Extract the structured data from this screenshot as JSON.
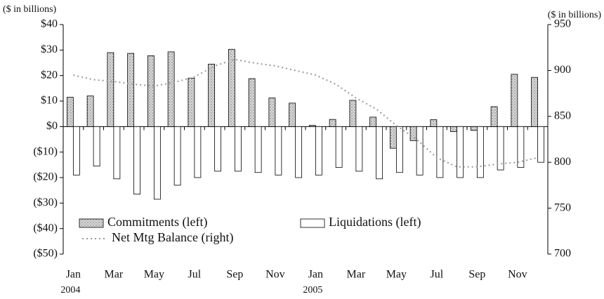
{
  "chart_data": {
    "type": "bar",
    "y_label": "($ in billions)",
    "y2_label": "($ in billions)",
    "categories": [
      "Jan",
      null,
      "Mar",
      null,
      "May",
      null,
      "Jul",
      null,
      "Sep",
      null,
      "Nov",
      null,
      "Jan",
      null,
      "Mar",
      null,
      "May",
      null,
      "Jul",
      null,
      "Sep",
      null,
      "Nov",
      null
    ],
    "years": [
      "2004",
      null,
      null,
      null,
      null,
      null,
      null,
      null,
      null,
      null,
      null,
      null,
      "2005",
      null,
      null,
      null,
      null,
      null,
      null,
      null,
      null,
      null,
      null,
      null
    ],
    "series": [
      {
        "name": "Commitments (left)",
        "type": "bar",
        "color": "#c8c8c8",
        "values": [
          11.5,
          12,
          29,
          28.7,
          27.8,
          29.3,
          19,
          24.5,
          30.3,
          18.8,
          11.2,
          9.2,
          0.5,
          2.8,
          10.3,
          3.7,
          -8.5,
          -5.5,
          2.7,
          -2,
          -1.5,
          7.8,
          20.5,
          19.3
        ]
      },
      {
        "name": "Liquidations (left)",
        "type": "bar",
        "color": "#ffffff",
        "values": [
          -19,
          -15.5,
          -20.5,
          -26.5,
          -28.5,
          -23,
          -20,
          -17.5,
          -17.5,
          -18,
          -19,
          -20,
          -19,
          -16,
          -17.5,
          -20.5,
          -18,
          -19,
          -20,
          -20,
          -20,
          -17,
          -16,
          -14
        ]
      },
      {
        "name": "Net Mtg Balance (right)",
        "type": "line",
        "axis": "y2",
        "color": "#999999",
        "values": [
          895,
          890,
          888,
          885,
          883,
          887,
          893,
          905,
          912,
          908,
          905,
          900,
          895,
          885,
          870,
          858,
          840,
          825,
          805,
          795,
          795,
          798,
          800,
          805
        ]
      }
    ],
    "ylim": [
      -50,
      40
    ],
    "yticks": [
      {
        "value": -50,
        "label": "($50)"
      },
      {
        "value": -40,
        "label": "($40)"
      },
      {
        "value": -30,
        "label": "($30)"
      },
      {
        "value": -20,
        "label": "($20)"
      },
      {
        "value": -10,
        "label": "($10)"
      },
      {
        "value": 0,
        "label": "$0"
      },
      {
        "value": 10,
        "label": "$10"
      },
      {
        "value": 20,
        "label": "$20"
      },
      {
        "value": 30,
        "label": "$30"
      },
      {
        "value": 40,
        "label": "$40"
      }
    ],
    "y2lim": [
      700,
      950
    ],
    "y2ticks": [
      700,
      750,
      800,
      850,
      900,
      950
    ],
    "grid": false,
    "legend": "lower left"
  }
}
